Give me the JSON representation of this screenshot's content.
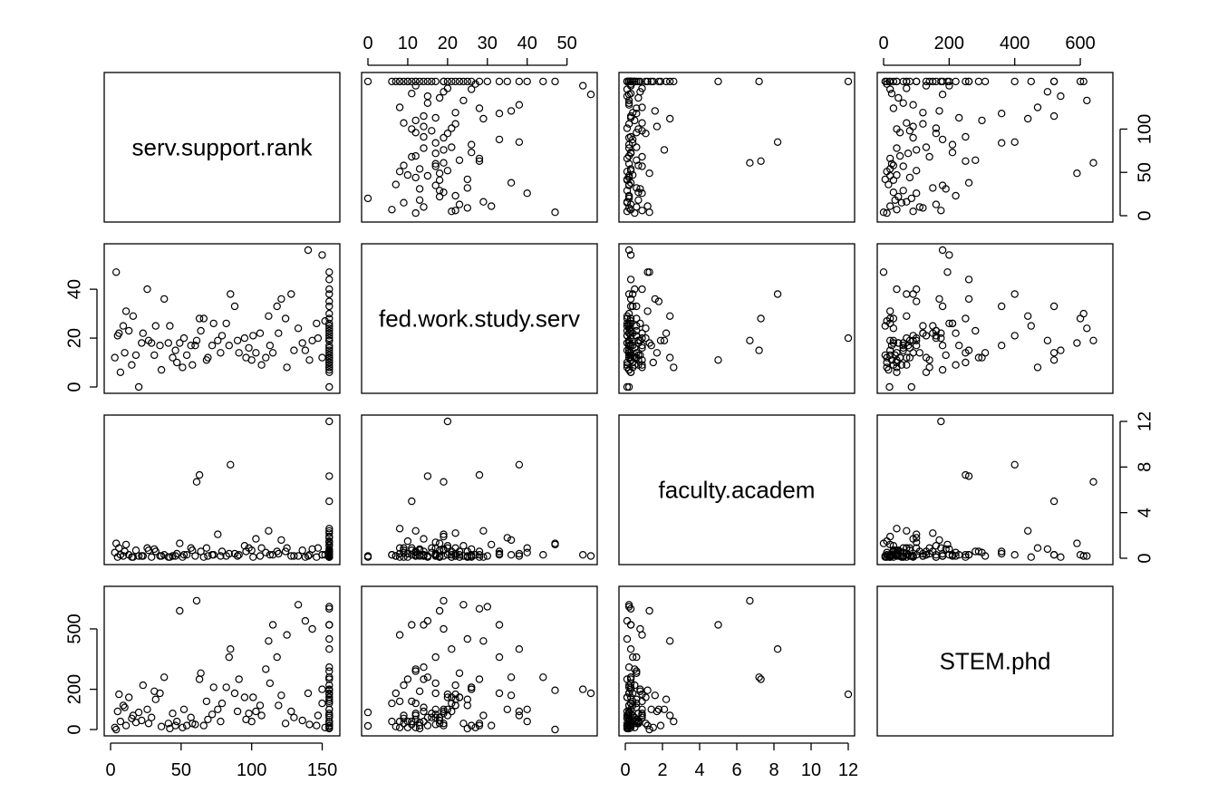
{
  "chart_data": {
    "type": "scatter",
    "matrix": "pairs",
    "variables": [
      {
        "name": "serv.support.rank",
        "range": [
          0,
          158
        ],
        "ticks": [
          0,
          50,
          100,
          150
        ]
      },
      {
        "name": "fed.work.study.serv",
        "range": [
          0,
          56
        ],
        "ticks": [
          0,
          10,
          20,
          30,
          40,
          50
        ]
      },
      {
        "name": "faculty.academ",
        "range": [
          0,
          12
        ],
        "ticks": [
          0,
          2,
          4,
          6,
          8,
          10,
          12
        ]
      },
      {
        "name": "STEM.phd",
        "range": [
          0,
          680
        ],
        "ticks": [
          0,
          200,
          400,
          600
        ]
      }
    ],
    "tick_label_sets": [
      [
        "0",
        "50",
        "100",
        "150"
      ],
      [
        "0",
        "10",
        "20",
        "30",
        "40",
        "50"
      ],
      [
        "0",
        "2",
        "4",
        "6",
        "8",
        "10",
        "12"
      ],
      [
        "0",
        "200",
        "400",
        "600"
      ]
    ],
    "y_tick_label_sets": [
      [
        "0",
        "50",
        "100"
      ],
      [
        "0",
        "20",
        "40"
      ],
      [
        "0",
        "4",
        "8",
        "12"
      ],
      [
        "0",
        "200",
        "500"
      ]
    ],
    "observations": [
      [
        155,
        0,
        0.1,
        18
      ],
      [
        155,
        47,
        1.2,
        195
      ],
      [
        150,
        54,
        0.3,
        200
      ],
      [
        140,
        56,
        0.2,
        180
      ],
      [
        155,
        40,
        0.5,
        40
      ],
      [
        155,
        38,
        0.4,
        70
      ],
      [
        155,
        30,
        0.2,
        610
      ],
      [
        155,
        28,
        0.3,
        600
      ],
      [
        155,
        33,
        0.3,
        520
      ],
      [
        155,
        25,
        0.1,
        450
      ],
      [
        155,
        21,
        0.3,
        400
      ],
      [
        155,
        14,
        0.2,
        310
      ],
      [
        155,
        10,
        0.1,
        250
      ],
      [
        155,
        9,
        0.5,
        220
      ],
      [
        155,
        7,
        0.2,
        180
      ],
      [
        155,
        6,
        0.3,
        130
      ],
      [
        155,
        17,
        1.4,
        100
      ],
      [
        155,
        12,
        2.4,
        70
      ],
      [
        155,
        20,
        12,
        175
      ],
      [
        155,
        15,
        7.2,
        260
      ],
      [
        155,
        11,
        5,
        520
      ],
      [
        155,
        8,
        2.6,
        40
      ],
      [
        155,
        24,
        1.1,
        30
      ],
      [
        155,
        19,
        0.7,
        80
      ],
      [
        155,
        13,
        0.2,
        5
      ],
      [
        155,
        16,
        0.5,
        60
      ],
      [
        155,
        22,
        2.2,
        150
      ],
      [
        155,
        35,
        1.8,
        100
      ],
      [
        155,
        26,
        0.8,
        200
      ],
      [
        155,
        10,
        1.5,
        10
      ],
      [
        155,
        44,
        0.3,
        260
      ],
      [
        155,
        12,
        0.6,
        290
      ],
      [
        155,
        19,
        1.9,
        20
      ],
      [
        155,
        23,
        0.1,
        160
      ],
      [
        155,
        8,
        0.4,
        140
      ],
      [
        143,
        19,
        0.8,
        500
      ],
      [
        138,
        15,
        0.1,
        540
      ],
      [
        133,
        24,
        0.2,
        620
      ],
      [
        128,
        38,
        0.2,
        90
      ],
      [
        125,
        8,
        0.9,
        470
      ],
      [
        121,
        36,
        1.6,
        170
      ],
      [
        118,
        33,
        0.6,
        360
      ],
      [
        115,
        14,
        0.3,
        520
      ],
      [
        112,
        29,
        2.4,
        440
      ],
      [
        110,
        12,
        0.5,
        300
      ],
      [
        106,
        22,
        0.2,
        120
      ],
      [
        103,
        14,
        1.7,
        90
      ],
      [
        100,
        11,
        0.7,
        40
      ],
      [
        98,
        16,
        0.9,
        80
      ],
      [
        95,
        20,
        1.1,
        160
      ],
      [
        91,
        14,
        0.3,
        250
      ],
      [
        88,
        33,
        0.4,
        180
      ],
      [
        85,
        38,
        8.2,
        400
      ],
      [
        82,
        26,
        0.2,
        210
      ],
      [
        79,
        21,
        0.6,
        130
      ],
      [
        76,
        19,
        2.1,
        100
      ],
      [
        72,
        17,
        0.3,
        75
      ],
      [
        69,
        12,
        0.2,
        50
      ],
      [
        66,
        28,
        0.1,
        20
      ],
      [
        63,
        28,
        7.3,
        250
      ],
      [
        61,
        19,
        6.7,
        640
      ],
      [
        60,
        17,
        0.2,
        25
      ],
      [
        57,
        17,
        0.9,
        60
      ],
      [
        54,
        13,
        0.3,
        20
      ],
      [
        51,
        8,
        0.1,
        10
      ],
      [
        49,
        18,
        1.3,
        590
      ],
      [
        47,
        10,
        0.4,
        40
      ],
      [
        44,
        12,
        0.2,
        80
      ],
      [
        41,
        18,
        0.1,
        30
      ],
      [
        38,
        36,
        0.3,
        260
      ],
      [
        35,
        17,
        0.2,
        180
      ],
      [
        32,
        25,
        0.6,
        150
      ],
      [
        29,
        18,
        0.1,
        60
      ],
      [
        26,
        40,
        0.9,
        100
      ],
      [
        23,
        22,
        0.2,
        220
      ],
      [
        20,
        0,
        0.2,
        85
      ],
      [
        18,
        13,
        0.7,
        35
      ],
      [
        15,
        9,
        0.1,
        55
      ],
      [
        13,
        23,
        0.3,
        160
      ],
      [
        11,
        31,
        1.2,
        20
      ],
      [
        9,
        25,
        0.2,
        120
      ],
      [
        7,
        6,
        0.3,
        40
      ],
      [
        5,
        21,
        0.1,
        90
      ],
      [
        4,
        47,
        1.3,
        0
      ],
      [
        3,
        12,
        0.5,
        10
      ],
      [
        6,
        22,
        0.9,
        175
      ],
      [
        10,
        14,
        0.6,
        110
      ],
      [
        16,
        29,
        0.1,
        70
      ],
      [
        22,
        18,
        0.2,
        45
      ],
      [
        27,
        19,
        0.7,
        30
      ],
      [
        31,
        13,
        0.8,
        190
      ],
      [
        36,
        7,
        0.2,
        15
      ],
      [
        42,
        25,
        0.1,
        5
      ],
      [
        46,
        15,
        0.2,
        20
      ],
      [
        52,
        20,
        0.3,
        100
      ],
      [
        58,
        9,
        0.7,
        30
      ],
      [
        64,
        23,
        0.6,
        280
      ],
      [
        68,
        11,
        0.9,
        140
      ],
      [
        73,
        26,
        0.3,
        210
      ],
      [
        78,
        14,
        0.2,
        40
      ],
      [
        84,
        17,
        0.4,
        360
      ],
      [
        90,
        19,
        0.2,
        90
      ],
      [
        96,
        12,
        0.6,
        50
      ],
      [
        101,
        21,
        0.1,
        160
      ],
      [
        107,
        9,
        0.9,
        70
      ],
      [
        113,
        17,
        0.3,
        230
      ],
      [
        119,
        22,
        0.4,
        120
      ],
      [
        124,
        28,
        0.6,
        30
      ],
      [
        130,
        15,
        0.2,
        60
      ],
      [
        136,
        18,
        0.7,
        45
      ],
      [
        146,
        26,
        0.1,
        20
      ],
      [
        150,
        12,
        0.3,
        130
      ],
      [
        152,
        27,
        0.3,
        10
      ],
      [
        147,
        20,
        0.9,
        70
      ],
      [
        141,
        11,
        0.3,
        25
      ]
    ]
  }
}
